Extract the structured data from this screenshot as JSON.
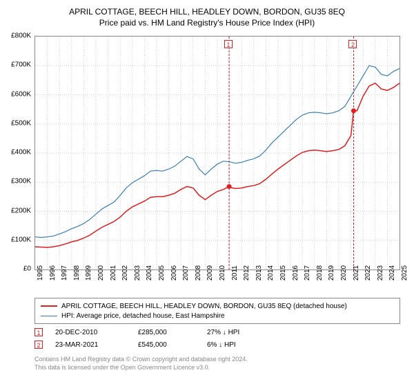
{
  "title": "APRIL COTTAGE, BEECH HILL, HEADLEY DOWN, BORDON, GU35 8EQ",
  "subtitle": "Price paid vs. HM Land Registry's House Price Index (HPI)",
  "chart": {
    "type": "line",
    "background_color": "#ffffff",
    "grid_color": "#cccccc",
    "border_color": "#888888",
    "x_axis": {
      "min": 1995,
      "max": 2025,
      "ticks": [
        1995,
        1996,
        1997,
        1998,
        1999,
        2000,
        2001,
        2002,
        2003,
        2004,
        2005,
        2006,
        2007,
        2008,
        2009,
        2010,
        2011,
        2012,
        2013,
        2014,
        2015,
        2016,
        2017,
        2018,
        2019,
        2020,
        2021,
        2022,
        2023,
        2024,
        2025
      ],
      "label_fontsize": 10,
      "label_rotation": -90
    },
    "y_axis": {
      "min": 0,
      "max": 800000,
      "ticks": [
        0,
        100000,
        200000,
        300000,
        400000,
        500000,
        600000,
        700000,
        800000
      ],
      "tick_labels": [
        "£0",
        "£100K",
        "£200K",
        "£300K",
        "£400K",
        "£500K",
        "£600K",
        "£700K",
        "£800K"
      ],
      "label_fontsize": 10
    },
    "series": [
      {
        "name": "APRIL COTTAGE, BEECH HILL, HEADLEY DOWN, BORDON, GU35 8EQ (detached house)",
        "color": "#e41a1c",
        "line_width": 1.5,
        "data": [
          [
            1995,
            78000
          ],
          [
            1995.5,
            77000
          ],
          [
            1996,
            76000
          ],
          [
            1996.5,
            78000
          ],
          [
            1997,
            82000
          ],
          [
            1997.5,
            88000
          ],
          [
            1998,
            95000
          ],
          [
            1998.5,
            100000
          ],
          [
            1999,
            108000
          ],
          [
            1999.5,
            118000
          ],
          [
            2000,
            132000
          ],
          [
            2000.5,
            145000
          ],
          [
            2001,
            155000
          ],
          [
            2001.5,
            165000
          ],
          [
            2002,
            180000
          ],
          [
            2002.5,
            200000
          ],
          [
            2003,
            215000
          ],
          [
            2003.5,
            225000
          ],
          [
            2004,
            235000
          ],
          [
            2004.5,
            248000
          ],
          [
            2005,
            250000
          ],
          [
            2005.5,
            250000
          ],
          [
            2006,
            255000
          ],
          [
            2006.5,
            262000
          ],
          [
            2007,
            275000
          ],
          [
            2007.5,
            285000
          ],
          [
            2008,
            280000
          ],
          [
            2008.5,
            255000
          ],
          [
            2009,
            240000
          ],
          [
            2009.5,
            255000
          ],
          [
            2010,
            268000
          ],
          [
            2010.5,
            275000
          ],
          [
            2010.97,
            285000
          ],
          [
            2011,
            282000
          ],
          [
            2011.5,
            278000
          ],
          [
            2012,
            280000
          ],
          [
            2012.5,
            285000
          ],
          [
            2013,
            288000
          ],
          [
            2013.5,
            295000
          ],
          [
            2014,
            310000
          ],
          [
            2014.5,
            328000
          ],
          [
            2015,
            345000
          ],
          [
            2015.5,
            360000
          ],
          [
            2016,
            375000
          ],
          [
            2016.5,
            390000
          ],
          [
            2017,
            402000
          ],
          [
            2017.5,
            408000
          ],
          [
            2018,
            410000
          ],
          [
            2018.5,
            408000
          ],
          [
            2019,
            405000
          ],
          [
            2019.5,
            408000
          ],
          [
            2020,
            412000
          ],
          [
            2020.5,
            425000
          ],
          [
            2021,
            460000
          ],
          [
            2021.22,
            545000
          ],
          [
            2021.5,
            545000
          ],
          [
            2022,
            595000
          ],
          [
            2022.5,
            630000
          ],
          [
            2023,
            640000
          ],
          [
            2023.5,
            620000
          ],
          [
            2024,
            615000
          ],
          [
            2024.5,
            625000
          ],
          [
            2025,
            640000
          ]
        ]
      },
      {
        "name": "HPI: Average price, detached house, East Hampshire",
        "color": "#377eb8",
        "line_width": 1.2,
        "data": [
          [
            1995,
            112000
          ],
          [
            1995.5,
            110000
          ],
          [
            1996,
            112000
          ],
          [
            1996.5,
            115000
          ],
          [
            1997,
            122000
          ],
          [
            1997.5,
            130000
          ],
          [
            1998,
            140000
          ],
          [
            1998.5,
            148000
          ],
          [
            1999,
            158000
          ],
          [
            1999.5,
            172000
          ],
          [
            2000,
            190000
          ],
          [
            2000.5,
            208000
          ],
          [
            2001,
            220000
          ],
          [
            2001.5,
            232000
          ],
          [
            2002,
            255000
          ],
          [
            2002.5,
            280000
          ],
          [
            2003,
            298000
          ],
          [
            2003.5,
            310000
          ],
          [
            2004,
            322000
          ],
          [
            2004.5,
            338000
          ],
          [
            2005,
            340000
          ],
          [
            2005.5,
            338000
          ],
          [
            2006,
            345000
          ],
          [
            2006.5,
            355000
          ],
          [
            2007,
            372000
          ],
          [
            2007.5,
            388000
          ],
          [
            2008,
            380000
          ],
          [
            2008.5,
            345000
          ],
          [
            2009,
            325000
          ],
          [
            2009.5,
            345000
          ],
          [
            2010,
            362000
          ],
          [
            2010.5,
            372000
          ],
          [
            2011,
            370000
          ],
          [
            2011.5,
            365000
          ],
          [
            2012,
            368000
          ],
          [
            2012.5,
            375000
          ],
          [
            2013,
            380000
          ],
          [
            2013.5,
            390000
          ],
          [
            2014,
            410000
          ],
          [
            2014.5,
            435000
          ],
          [
            2015,
            455000
          ],
          [
            2015.5,
            475000
          ],
          [
            2016,
            495000
          ],
          [
            2016.5,
            515000
          ],
          [
            2017,
            530000
          ],
          [
            2017.5,
            538000
          ],
          [
            2018,
            540000
          ],
          [
            2018.5,
            538000
          ],
          [
            2019,
            535000
          ],
          [
            2019.5,
            538000
          ],
          [
            2020,
            545000
          ],
          [
            2020.5,
            560000
          ],
          [
            2021,
            595000
          ],
          [
            2021.5,
            630000
          ],
          [
            2022,
            665000
          ],
          [
            2022.5,
            700000
          ],
          [
            2023,
            695000
          ],
          [
            2023.5,
            670000
          ],
          [
            2024,
            665000
          ],
          [
            2024.5,
            680000
          ],
          [
            2025,
            690000
          ]
        ]
      }
    ],
    "markers": [
      {
        "id": "1",
        "x": 2010.97,
        "y": 285000,
        "color": "#e41a1c",
        "vline": true
      },
      {
        "id": "2",
        "x": 2021.22,
        "y": 545000,
        "color": "#e41a1c",
        "vline": true
      }
    ]
  },
  "legend": {
    "items": [
      {
        "label": "APRIL COTTAGE, BEECH HILL, HEADLEY DOWN, BORDON, GU35 8EQ (detached house)",
        "color": "#e41a1c",
        "line_width": 2
      },
      {
        "label": "HPI: Average price, detached house, East Hampshire",
        "color": "#377eb8",
        "line_width": 1.5
      }
    ]
  },
  "transactions": [
    {
      "id": "1",
      "date": "20-DEC-2010",
      "price": "£285,000",
      "pct": "27%",
      "arrow": "↓",
      "vs": "HPI",
      "color": "#e41a1c"
    },
    {
      "id": "2",
      "date": "23-MAR-2021",
      "price": "£545,000",
      "pct": "6%",
      "arrow": "↓",
      "vs": "HPI",
      "color": "#e41a1c"
    }
  ],
  "footer": {
    "line1": "Contains HM Land Registry data © Crown copyright and database right 2024.",
    "line2": "This data is licensed under the Open Government Licence v3.0."
  }
}
